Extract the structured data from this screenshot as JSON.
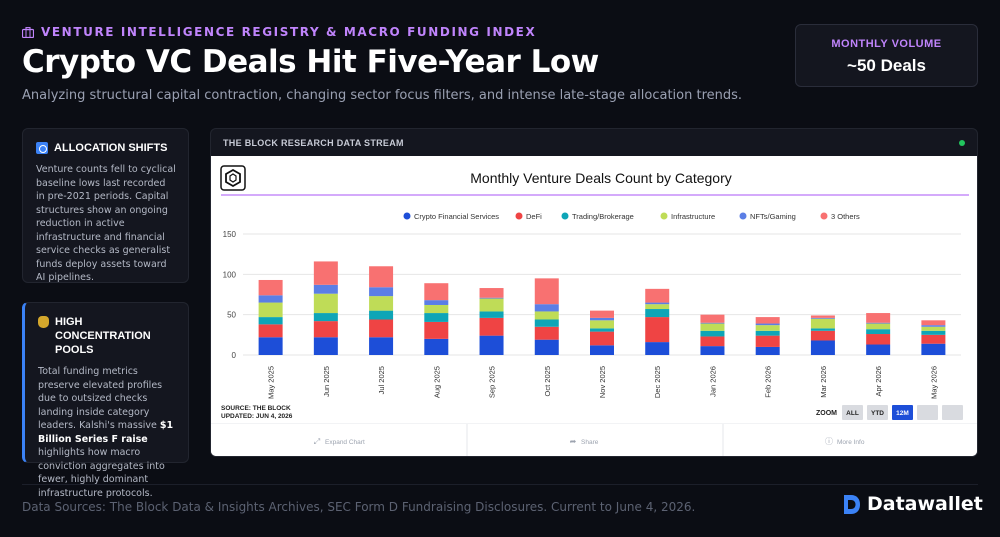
{
  "header": {
    "kicker": "VENTURE INTELLIGENCE REGISTRY & MACRO FUNDING INDEX",
    "title": "Crypto VC Deals Hit Five-Year Low",
    "subtitle": "Analyzing structural capital contraction, changing sector focus filters, and intense late-stage allocation trends."
  },
  "metric": {
    "label": "MONTHLY VOLUME",
    "value": "~50 Deals"
  },
  "cards": {
    "allocation": {
      "title": "ALLOCATION SHIFTS",
      "body": "Venture counts fell to cyclical baseline lows last recorded in pre-2021 periods. Capital structures show an ongoing reduction in active infrastructure and financial service checks as generalist funds deploy assets toward AI pipelines."
    },
    "concentration": {
      "title": "HIGH CONCENTRATION POOLS",
      "body_pre": "Total funding metrics preserve elevated profiles due to outsized checks landing inside category leaders. Kalshi's massive ",
      "body_bold": "$1 Billion Series F raise",
      "body_post": " highlights how macro conviction aggregates into fewer, highly dominant infrastructure protocols."
    }
  },
  "panel": {
    "title": "THE BLOCK RESEARCH DATA STREAM",
    "source_line1": "SOURCE: THE BLOCK",
    "source_line2": "UPDATED: JUN 4, 2026",
    "zoom_label": "ZOOM",
    "zoom_buttons": [
      "ALL",
      "YTD",
      "12M",
      "",
      ""
    ],
    "zoom_active": "12M",
    "actions": [
      "Expand Chart",
      "Share",
      "More Info"
    ]
  },
  "colors": {
    "accent": "#c084fc",
    "active_zoom": "#1d4ed8"
  },
  "chart_data": {
    "type": "bar",
    "stacked": true,
    "title": "Monthly Venture Deals Count by Category",
    "xlabel": "",
    "ylabel": "",
    "categories": [
      "May 2025",
      "Jun 2025",
      "Jul 2025",
      "Aug 2025",
      "Sep 2025",
      "Oct 2025",
      "Nov 2025",
      "Dec 2025",
      "Jan 2026",
      "Feb 2026",
      "Mar 2026",
      "Apr 2026",
      "May 2026"
    ],
    "ylim": [
      0,
      150
    ],
    "yticks": [
      0,
      50,
      100,
      150
    ],
    "grid": true,
    "legend_position": "top",
    "series": [
      {
        "name": "Crypto Financial Services",
        "color": "#1d4ed8",
        "values": [
          22,
          22,
          22,
          20,
          24,
          19,
          12,
          16,
          11,
          10,
          18,
          13,
          14
        ]
      },
      {
        "name": "DeFi",
        "color": "#ef4444",
        "values": [
          16,
          20,
          22,
          21,
          22,
          16,
          17,
          31,
          12,
          14,
          12,
          13,
          11
        ]
      },
      {
        "name": "Trading/Brokerage",
        "color": "#0ea5b7",
        "values": [
          9,
          10,
          11,
          11,
          8,
          9,
          4,
          10,
          7,
          6,
          3,
          6,
          5
        ]
      },
      {
        "name": "Infrastructure",
        "color": "#bfdc57",
        "values": [
          18,
          24,
          18,
          10,
          16,
          10,
          10,
          6,
          9,
          7,
          12,
          7,
          5
        ]
      },
      {
        "name": "NFTs/Gaming",
        "color": "#5b7ee5",
        "values": [
          9,
          11,
          11,
          6,
          1,
          9,
          3,
          2,
          1,
          2,
          1,
          1,
          2
        ]
      },
      {
        "name": "3 Others",
        "color": "#f87171",
        "values": [
          19,
          29,
          26,
          21,
          12,
          32,
          9,
          17,
          10,
          8,
          3,
          12,
          6
        ]
      }
    ]
  },
  "footer": {
    "sources": "Data Sources: The Block Data & Insights Archives, SEC Form D Fundraising Disclosures. Current to June 4, 2026."
  },
  "brand": {
    "name": "Datawallet"
  }
}
